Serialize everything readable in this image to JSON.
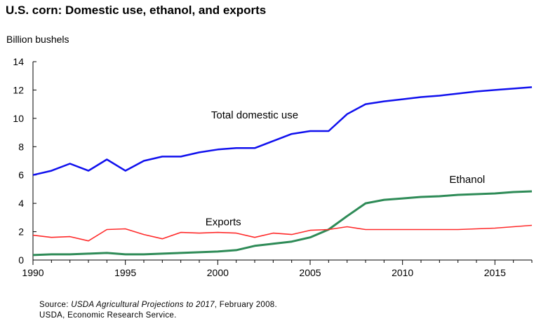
{
  "colors": {
    "total": "#1010ee",
    "ethanol": "#2e8b57",
    "exports": "#ff2a2a",
    "axis": "#000000"
  },
  "source": {
    "prefix": "Source: ",
    "italic": "USDA Agricultural Projections to 2017",
    "suffix": ", February 2008.",
    "line2": "USDA, Economic Research Service."
  },
  "chart_data": {
    "type": "line",
    "title": "U.S. corn: Domestic use, ethanol, and exports",
    "ylabel": "Billion bushels",
    "xlabel": "",
    "xlim": [
      1990,
      2017
    ],
    "ylim": [
      0,
      14
    ],
    "xticks": [
      1990,
      1995,
      2000,
      2005,
      2010,
      2015
    ],
    "yticks": [
      0,
      2,
      4,
      6,
      8,
      10,
      12,
      14
    ],
    "grid": false,
    "legend": "inline labels",
    "x": [
      1990,
      1991,
      1992,
      1993,
      1994,
      1995,
      1996,
      1997,
      1998,
      1999,
      2000,
      2001,
      2002,
      2003,
      2004,
      2005,
      2006,
      2007,
      2008,
      2009,
      2010,
      2011,
      2012,
      2013,
      2014,
      2015,
      2016,
      2017
    ],
    "series": [
      {
        "name": "Total domestic use",
        "values": [
          6.0,
          6.3,
          6.8,
          6.3,
          7.1,
          6.3,
          7.0,
          7.3,
          7.3,
          7.6,
          7.8,
          7.9,
          7.9,
          8.4,
          8.9,
          9.1,
          9.1,
          10.3,
          11.0,
          11.2,
          11.35,
          11.5,
          11.6,
          11.75,
          11.9,
          12.0,
          12.1,
          12.2
        ]
      },
      {
        "name": "Ethanol",
        "values": [
          0.35,
          0.4,
          0.4,
          0.45,
          0.5,
          0.4,
          0.4,
          0.45,
          0.5,
          0.55,
          0.6,
          0.7,
          1.0,
          1.15,
          1.3,
          1.6,
          2.15,
          3.1,
          4.0,
          4.25,
          4.35,
          4.45,
          4.5,
          4.6,
          4.65,
          4.7,
          4.8,
          4.85
        ]
      },
      {
        "name": "Exports",
        "values": [
          1.75,
          1.6,
          1.65,
          1.35,
          2.15,
          2.2,
          1.8,
          1.5,
          1.95,
          1.9,
          1.95,
          1.9,
          1.6,
          1.9,
          1.8,
          2.1,
          2.15,
          2.35,
          2.15,
          2.15,
          2.15,
          2.15,
          2.15,
          2.15,
          2.2,
          2.25,
          2.35,
          2.45
        ]
      }
    ]
  }
}
